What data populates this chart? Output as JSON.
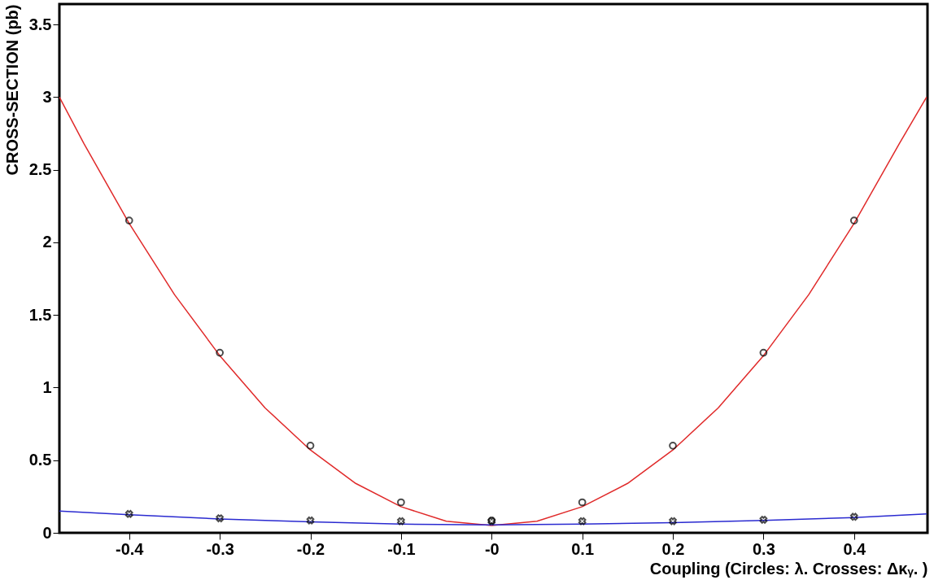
{
  "chart_data": {
    "type": "scatter",
    "xlabel": "Coupling (Circles: λ. Crosses: Δκᵧ. )",
    "ylabel": "CROSS-SECTION (pb)",
    "xlim": [
      -0.477,
      0.481
    ],
    "ylim": [
      0,
      3.64
    ],
    "xticks": [
      -0.4,
      -0.3,
      -0.2,
      -0.1,
      {
        "value": 0,
        "label": "-0"
      },
      0.1,
      0.2,
      0.3,
      0.4
    ],
    "yticks": [
      0,
      0.5,
      1,
      1.5,
      2,
      2.5,
      3,
      3.5
    ],
    "grid": false,
    "series": [
      {
        "type": "line",
        "color": "#e02a2a",
        "marker": "none",
        "line_style": "solid",
        "x": [
          -0.477,
          -0.45,
          -0.4,
          -0.35,
          -0.3,
          -0.25,
          -0.2,
          -0.15,
          -0.1,
          -0.05,
          0,
          0.05,
          0.1,
          0.15,
          0.2,
          0.25,
          0.3,
          0.35,
          0.4,
          0.45,
          0.48
        ],
        "values": [
          3.0,
          2.68,
          2.13,
          1.64,
          1.22,
          0.86,
          0.57,
          0.34,
          0.18,
          0.08,
          0.05,
          0.08,
          0.18,
          0.34,
          0.57,
          0.86,
          1.22,
          1.64,
          2.13,
          2.68,
          3.0
        ]
      },
      {
        "type": "line",
        "color": "#2a2ad0",
        "marker": "none",
        "line_style": "solid",
        "x": [
          -0.477,
          -0.4,
          -0.3,
          -0.2,
          -0.1,
          0,
          0.1,
          0.2,
          0.3,
          0.4,
          0.48
        ],
        "values": [
          0.15,
          0.125,
          0.095,
          0.075,
          0.06,
          0.055,
          0.06,
          0.07,
          0.085,
          0.105,
          0.13
        ]
      },
      {
        "color": "#000000",
        "marker": "circle",
        "x": [
          -0.4,
          -0.3,
          -0.2,
          -0.1,
          0,
          0.1,
          0.2,
          0.3,
          0.4
        ],
        "values": [
          2.15,
          1.24,
          0.6,
          0.21,
          0.085,
          0.21,
          0.6,
          1.24,
          2.15
        ]
      },
      {
        "color": "#000000",
        "marker": "cross",
        "x": [
          -0.4,
          -0.3,
          -0.2,
          -0.1,
          0,
          0.1,
          0.2,
          0.3,
          0.4
        ],
        "values": [
          0.13,
          0.1,
          0.085,
          0.08,
          0.08,
          0.08,
          0.08,
          0.09,
          0.11
        ]
      }
    ]
  }
}
